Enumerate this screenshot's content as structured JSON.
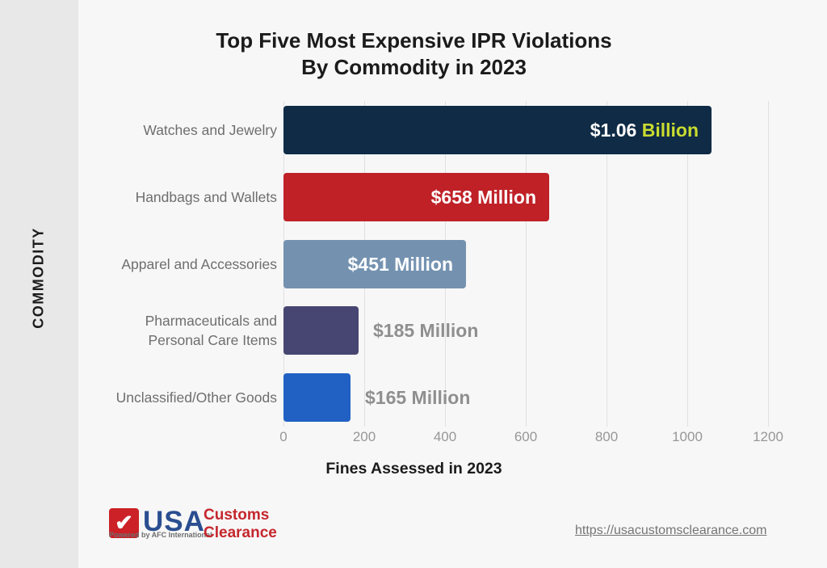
{
  "page": {
    "background": "#f7f7f7",
    "sidebar_background": "#e8e8e8"
  },
  "title": {
    "line1": "Top Five Most Expensive IPR Violations",
    "line2": "By Commodity in 2023"
  },
  "y_axis": {
    "label": "COMMODITY"
  },
  "x_axis": {
    "label": "Fines Assessed in 2023"
  },
  "chart_data": {
    "type": "bar",
    "orientation": "horizontal",
    "title": "Top Five Most Expensive IPR Violations By Commodity in 2023",
    "xlabel": "Fines Assessed in 2023",
    "ylabel": "COMMODITY",
    "xlim": [
      0,
      1200
    ],
    "x_ticks": [
      "0",
      "200",
      "400",
      "600",
      "800",
      "1000",
      "1200"
    ],
    "grid": true,
    "gridline_color": "#e0e0e0",
    "categories": [
      "Watches and Jewelry",
      "Handbags and Wallets",
      "Apparel and Accessories",
      "Pharmaceuticals and Personal Care Items",
      "Unclassified/Other Goods"
    ],
    "values": [
      1060,
      658,
      451,
      185,
      165
    ],
    "bars": [
      {
        "category_lines": [
          "Watches and Jewelry"
        ],
        "value": 1060,
        "color": "#0f2b45",
        "label_position": "inside",
        "value_parts": [
          {
            "text": "$1.06 ",
            "color": "#ffffff"
          },
          {
            "text": "Billion",
            "color": "#c9dc30"
          }
        ]
      },
      {
        "category_lines": [
          "Handbags and Wallets"
        ],
        "value": 658,
        "color": "#bf2127",
        "label_position": "inside",
        "value_parts": [
          {
            "text": "$658 Million",
            "color": "#ffffff"
          }
        ]
      },
      {
        "category_lines": [
          "Apparel and Accessories"
        ],
        "value": 451,
        "color": "#7492b0",
        "label_position": "inside",
        "value_parts": [
          {
            "text": "$451 Million",
            "color": "#ffffff"
          }
        ]
      },
      {
        "category_lines": [
          "Pharmaceuticals and",
          "Personal Care Items"
        ],
        "value": 185,
        "color": "#474672",
        "label_position": "outside",
        "value_parts": [
          {
            "text": "$185 Million",
            "color": "#8f8f8f"
          }
        ]
      },
      {
        "category_lines": [
          "Unclassified/Other Goods"
        ],
        "value": 165,
        "color": "#2161c4",
        "label_position": "outside",
        "value_parts": [
          {
            "text": "$165 Million",
            "color": "#8f8f8f"
          }
        ]
      }
    ]
  },
  "footer": {
    "logo": {
      "checkmark": "✔",
      "wordmark": "USA",
      "tagline": "Powered by AFC International",
      "brand_line1": "Customs",
      "brand_line2": "Clearance",
      "colors": {
        "mark_background": "#cb2127",
        "wordmark": "#2a4e90",
        "brand": "#c5272d"
      }
    },
    "url": "https://usacustomsclearance.com"
  }
}
